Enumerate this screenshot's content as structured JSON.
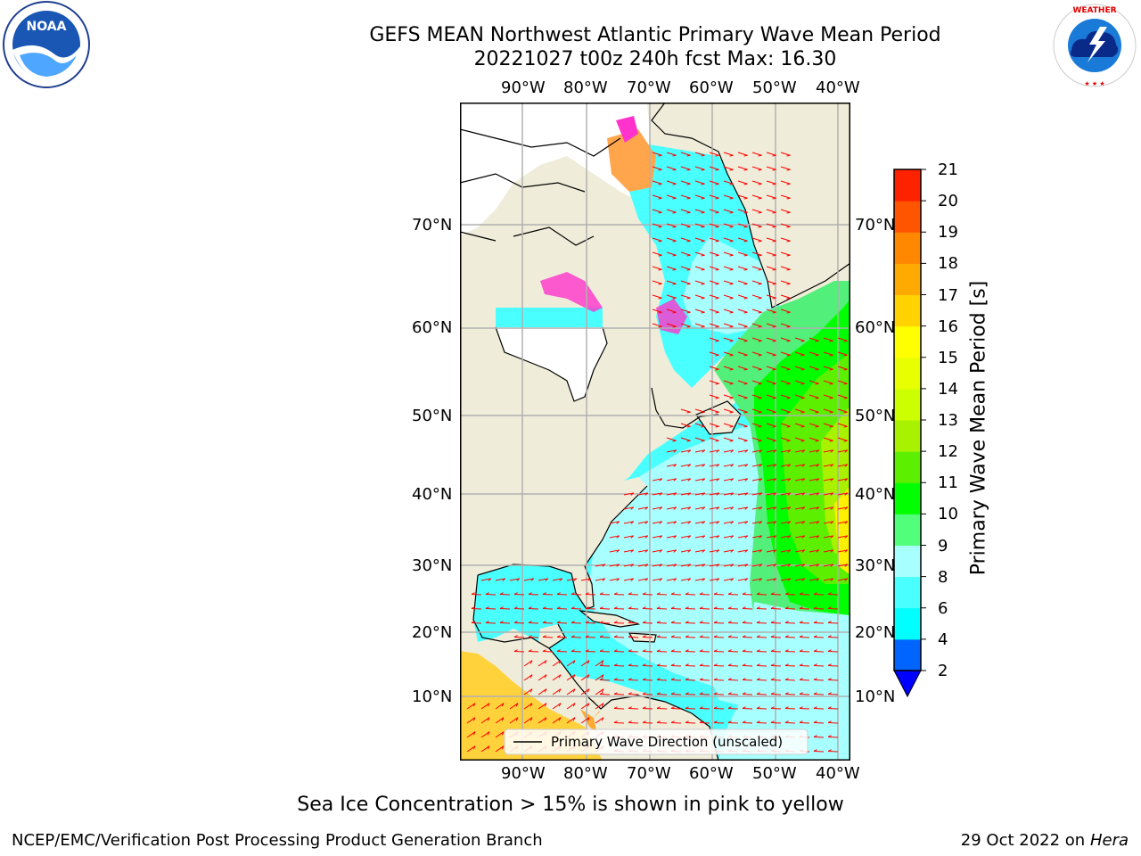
{
  "title": {
    "line1": "GEFS MEAN Northwest Atlantic Primary Wave Mean Period",
    "line2": "20221027 t00z 240h fcst   Max: 16.30"
  },
  "logos": {
    "left": "noora-logo",
    "right": "nws-logo",
    "right_text": "NATIONAL WEATHER SERVICE"
  },
  "map": {
    "lon_labels": [
      "90°W",
      "80°W",
      "70°W",
      "60°W",
      "50°W",
      "40°W"
    ],
    "lat_labels": [
      "70°N",
      "60°N",
      "50°N",
      "40°N",
      "30°N",
      "20°N",
      "10°N"
    ],
    "legend_text": "Primary Wave Direction (unscaled)",
    "colors": {
      "land": "#efedd9",
      "ocean_default": "#49ffff",
      "ocean_light": "#a8ffff",
      "green_mid": "#52f07a",
      "green_dark": "#2ee81e",
      "yellow_green": "#a8f200",
      "yellow": "#ffef00",
      "ice_pink": "#ff33cc",
      "ice_orange": "#ffa64d",
      "arrow": "#ff0000",
      "grid": "#b0b0b0"
    }
  },
  "colorbar": {
    "label": "Primary Wave Mean Period [s]",
    "ticks": [
      "2",
      "4",
      "6",
      "8",
      "9",
      "10",
      "11",
      "12",
      "13",
      "14",
      "15",
      "16",
      "17",
      "18",
      "19",
      "20",
      "21"
    ],
    "colors": [
      "#0064ff",
      "#00ffff",
      "#49ffff",
      "#a8ffff",
      "#52ff7a",
      "#00ff00",
      "#5cf000",
      "#a8f200",
      "#ccff00",
      "#e8ff00",
      "#ffff00",
      "#ffd200",
      "#ffaa00",
      "#ff8800",
      "#ff5500",
      "#ff2200",
      "#ff0000"
    ],
    "under_color": "#0000ff"
  },
  "footer": {
    "note": "Sea Ice Concentration > 15% is shown in pink to yellow",
    "left": "NCEP/EMC/Verification Post Processing Product Generation Branch",
    "right_prefix": "29 Oct 2022 on ",
    "right_host": "Hera"
  }
}
